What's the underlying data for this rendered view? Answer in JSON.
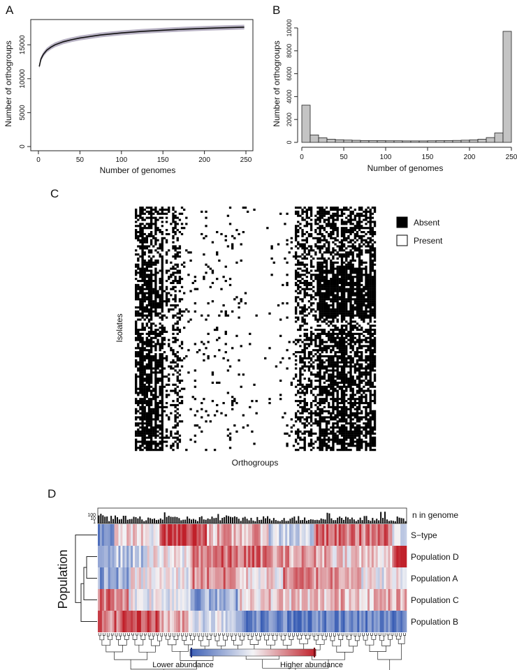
{
  "chart_data": [
    {
      "panel": "A",
      "type": "line",
      "xlabel": "Number of genomes",
      "ylabel": "Number of orthogroups",
      "xlim": [
        0,
        250
      ],
      "ylim": [
        0,
        18000
      ],
      "xticks": [
        0,
        50,
        100,
        150,
        200,
        250
      ],
      "yticks": [
        0,
        5000,
        10000,
        15000
      ],
      "series": [
        {
          "x": [
            1,
            3,
            6,
            10,
            15,
            20,
            30,
            40,
            50,
            75,
            100,
            125,
            150,
            175,
            200,
            225,
            248
          ],
          "y": [
            11800,
            12900,
            13600,
            14200,
            14650,
            15000,
            15450,
            15750,
            16000,
            16450,
            16750,
            16980,
            17150,
            17300,
            17420,
            17520,
            17600
          ]
        }
      ],
      "band": {
        "upper_offset": 350,
        "lower_offset": 350
      },
      "colors": {
        "line": "#111111",
        "band": "#b8b2c4"
      }
    },
    {
      "panel": "B",
      "type": "bar",
      "xlabel": "Number of genomes",
      "ylabel": "Number of orthogroups",
      "xlim": [
        0,
        250
      ],
      "ylim": [
        0,
        10000
      ],
      "xticks": [
        0,
        50,
        100,
        150,
        200,
        250
      ],
      "yticks": [
        0,
        2000,
        4000,
        6000,
        8000,
        10000
      ],
      "bin_width": 10,
      "bin_starts": [
        0,
        10,
        20,
        30,
        40,
        50,
        60,
        70,
        80,
        90,
        100,
        110,
        120,
        130,
        140,
        150,
        160,
        170,
        180,
        190,
        200,
        210,
        220,
        230,
        240
      ],
      "values": [
        3250,
        650,
        400,
        280,
        230,
        200,
        180,
        160,
        150,
        150,
        140,
        140,
        130,
        130,
        130,
        140,
        150,
        160,
        170,
        190,
        220,
        280,
        420,
        820,
        9700
      ],
      "colors": {
        "bar": "#c4c4c4"
      }
    },
    {
      "panel": "C",
      "type": "heatmap",
      "xlabel": "Orthogroups",
      "ylabel": "Isolates",
      "legend": [
        {
          "label": "Absent",
          "color": "#000000"
        },
        {
          "label": "Present",
          "color": "#ffffff"
        }
      ],
      "legend_position": "right",
      "n_rows": 120,
      "n_cols": 110,
      "column_absent_profile": [
        {
          "from": 0.0,
          "to": 0.11,
          "p": 0.55
        },
        {
          "from": 0.11,
          "to": 0.2,
          "p": 0.3
        },
        {
          "from": 0.2,
          "to": 0.45,
          "p": 0.05
        },
        {
          "from": 0.45,
          "to": 0.6,
          "p": 0.02
        },
        {
          "from": 0.6,
          "to": 0.66,
          "p": 0.06
        },
        {
          "from": 0.66,
          "to": 0.76,
          "p": 0.45
        },
        {
          "from": 0.76,
          "to": 1.0,
          "p": 0.78
        }
      ]
    },
    {
      "panel": "D",
      "type": "heatmap",
      "ylabel": "Population",
      "rows": [
        "S−type",
        "Population D",
        "Population A",
        "Population C",
        "Population B"
      ],
      "top_bar_label": "n in genome",
      "top_bar_ticks": [
        "100",
        "10",
        "1"
      ],
      "n_cols": 150,
      "color_scale": {
        "low": "#3b5fb5",
        "mid": "#f4f4f6",
        "high": "#c0202a",
        "low_label": "Lower abundance",
        "high_label": "Higher abundance"
      },
      "row_segments": [
        [
          {
            "from": 0,
            "to": 0.05,
            "v": -0.8
          },
          {
            "from": 0.05,
            "to": 0.2,
            "v": 0.1
          },
          {
            "from": 0.2,
            "to": 0.35,
            "v": 0.9
          },
          {
            "from": 0.35,
            "to": 0.55,
            "v": 0.3
          },
          {
            "from": 0.55,
            "to": 0.7,
            "v": -0.2
          },
          {
            "from": 0.7,
            "to": 0.95,
            "v": 0.6
          },
          {
            "from": 0.95,
            "to": 1.0,
            "v": -0.3
          }
        ],
        [
          {
            "from": 0,
            "to": 0.15,
            "v": -0.3
          },
          {
            "from": 0.15,
            "to": 0.3,
            "v": 0.0
          },
          {
            "from": 0.3,
            "to": 0.55,
            "v": 0.6
          },
          {
            "from": 0.55,
            "to": 0.75,
            "v": 0.4
          },
          {
            "from": 0.75,
            "to": 0.95,
            "v": 0.2
          },
          {
            "from": 0.95,
            "to": 1.0,
            "v": 0.9
          }
        ],
        [
          {
            "from": 0,
            "to": 0.1,
            "v": -0.5
          },
          {
            "from": 0.1,
            "to": 0.3,
            "v": 0.0
          },
          {
            "from": 0.3,
            "to": 0.45,
            "v": 0.5
          },
          {
            "from": 0.45,
            "to": 0.6,
            "v": 0.1
          },
          {
            "from": 0.6,
            "to": 0.85,
            "v": 0.5
          },
          {
            "from": 0.85,
            "to": 1.0,
            "v": 0.0
          }
        ],
        [
          {
            "from": 0,
            "to": 0.1,
            "v": 0.6
          },
          {
            "from": 0.1,
            "to": 0.3,
            "v": 0.0
          },
          {
            "from": 0.3,
            "to": 0.45,
            "v": -0.5
          },
          {
            "from": 0.45,
            "to": 0.75,
            "v": 0.2
          },
          {
            "from": 0.75,
            "to": 1.0,
            "v": 0.3
          }
        ],
        [
          {
            "from": 0,
            "to": 0.07,
            "v": 0.6
          },
          {
            "from": 0.07,
            "to": 0.2,
            "v": 0.85
          },
          {
            "from": 0.2,
            "to": 0.3,
            "v": 0.3
          },
          {
            "from": 0.3,
            "to": 0.45,
            "v": -0.1
          },
          {
            "from": 0.45,
            "to": 1.0,
            "v": -0.75
          }
        ]
      ]
    }
  ],
  "panel_labels": [
    "A",
    "B",
    "C",
    "D"
  ]
}
